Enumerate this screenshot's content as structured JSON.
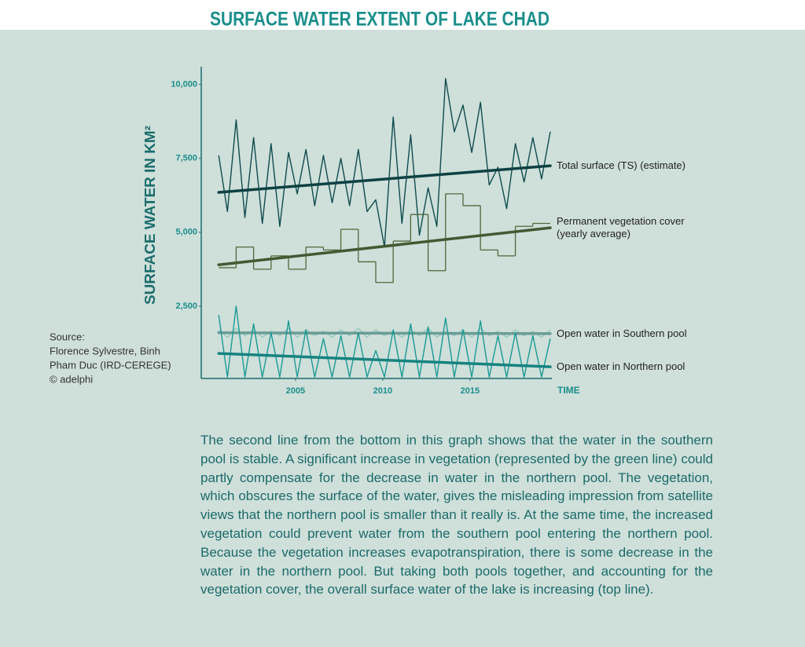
{
  "chart_data": {
    "type": "line",
    "title": "SURFACE WATER EXTENT OF LAKE CHAD",
    "y_label": "SURFACE WATER IN KM²",
    "x_label": "TIME",
    "source": [
      "Source:",
      "Florence Sylvestre, Binh",
      "Pham Duc (IRD-CEREGE)",
      "© adelphi"
    ],
    "xlim": [
      1999.6,
      2019.8
    ],
    "xticks": [
      2005,
      2010,
      2015
    ],
    "ylim": [
      0,
      10600
    ],
    "yticks": [
      {
        "value": 2500,
        "label": "2,500"
      },
      {
        "value": 5000,
        "label": "5,000"
      },
      {
        "value": 7500,
        "label": "7,500"
      },
      {
        "value": 10000,
        "label": "10,000"
      }
    ],
    "grid": false,
    "series": [
      {
        "name": "Total surface (TS) (estimate)",
        "color": "#0f4c4e",
        "x": [
          2000.6,
          2001.1,
          2001.6,
          2002.1,
          2002.6,
          2003.1,
          2003.6,
          2004.1,
          2004.6,
          2005.1,
          2005.6,
          2006.1,
          2006.6,
          2007.1,
          2007.6,
          2008.1,
          2008.6,
          2009.1,
          2009.6,
          2010.1,
          2010.6,
          2011.1,
          2011.6,
          2012.1,
          2012.6,
          2013.1,
          2013.6,
          2014.1,
          2014.6,
          2015.1,
          2015.6,
          2016.1,
          2016.6,
          2017.1,
          2017.6,
          2018.1,
          2018.6,
          2019.1,
          2019.6
        ],
        "values": [
          7600,
          5700,
          8800,
          5500,
          8200,
          5300,
          8000,
          5200,
          7700,
          6300,
          7800,
          5900,
          7600,
          6000,
          7500,
          5900,
          7800,
          5700,
          6100,
          4500,
          8900,
          5300,
          8300,
          4900,
          6500,
          5200,
          10200,
          8400,
          9300,
          7700,
          9400,
          6600,
          7200,
          5800,
          8000,
          6700,
          8200,
          6800,
          8400
        ],
        "trend": {
          "x": [
            2000.6,
            2019.6
          ],
          "values": [
            6350,
            7250
          ]
        }
      },
      {
        "name": "Permanent vegetation cover (yearly average)",
        "color": "#4d6a3b",
        "step": true,
        "bins": [
          2000.6,
          2001.6,
          2002.6,
          2003.6,
          2004.6,
          2005.6,
          2006.6,
          2007.6,
          2008.6,
          2009.6,
          2010.6,
          2011.6,
          2012.6,
          2013.6,
          2014.6,
          2015.6,
          2016.6,
          2017.6,
          2018.6,
          2019.6
        ],
        "values": [
          3800,
          4500,
          3750,
          4200,
          3750,
          4500,
          4400,
          5100,
          4000,
          3300,
          4700,
          5600,
          3700,
          6300,
          5900,
          4400,
          4200,
          5200,
          5300
        ],
        "trend": {
          "x": [
            2000.6,
            2019.6
          ],
          "values": [
            3900,
            5150
          ]
        }
      },
      {
        "name": "Open water in Southern pool",
        "color": "#93c8c0",
        "x": [
          2000.6,
          2001.1,
          2001.6,
          2002.1,
          2002.6,
          2003.1,
          2003.6,
          2004.1,
          2004.6,
          2005.1,
          2005.6,
          2006.1,
          2006.6,
          2007.1,
          2007.6,
          2008.1,
          2008.6,
          2009.1,
          2009.6,
          2010.1,
          2010.6,
          2011.1,
          2011.6,
          2012.1,
          2012.6,
          2013.1,
          2013.6,
          2014.1,
          2014.6,
          2015.1,
          2015.6,
          2016.1,
          2016.6,
          2017.1,
          2017.6,
          2018.1,
          2018.6,
          2019.1,
          2019.6
        ],
        "values": [
          1700,
          1450,
          1750,
          1500,
          1700,
          1450,
          1650,
          1500,
          1750,
          1450,
          1700,
          1500,
          1650,
          1450,
          1700,
          1500,
          1750,
          1450,
          1700,
          1500,
          1650,
          1450,
          1700,
          1500,
          1750,
          1450,
          1650,
          1500,
          1700,
          1450,
          1750,
          1500,
          1650,
          1450,
          1700,
          1500,
          1650,
          1450,
          1700
        ],
        "trend": {
          "x": [
            2000.6,
            2019.6
          ],
          "values": [
            1600,
            1570
          ]
        }
      },
      {
        "name": "Open water in Northern pool",
        "color": "#1a9a95",
        "x": [
          2000.6,
          2001.1,
          2001.6,
          2002.1,
          2002.6,
          2003.1,
          2003.6,
          2004.1,
          2004.6,
          2005.1,
          2005.6,
          2006.1,
          2006.6,
          2007.1,
          2007.6,
          2008.1,
          2008.6,
          2009.1,
          2009.6,
          2010.1,
          2010.6,
          2011.1,
          2011.6,
          2012.1,
          2012.6,
          2013.1,
          2013.6,
          2014.1,
          2014.6,
          2015.1,
          2015.6,
          2016.1,
          2016.6,
          2017.1,
          2017.6,
          2018.1,
          2018.6,
          2019.1,
          2019.6
        ],
        "values": [
          2200,
          100,
          2500,
          100,
          1900,
          100,
          1600,
          100,
          2000,
          100,
          1700,
          100,
          1400,
          100,
          1500,
          100,
          1600,
          100,
          1000,
          100,
          1700,
          100,
          1900,
          100,
          1800,
          100,
          2100,
          100,
          1700,
          100,
          2000,
          100,
          1500,
          100,
          1600,
          100,
          1500,
          100,
          1400
        ],
        "trend": {
          "x": [
            2000.6,
            2019.6
          ],
          "values": [
            900,
            450
          ]
        }
      }
    ],
    "caption": "The second line from the bottom in this graph shows that the water in the southern pool is stable. A significant increase in vegetation (represented by the green line) could partly compensate for the decrease in water in the northern pool. The vegetation, which obscures the surface of the water, gives the misleading impression from satellite views that the northern pool is smaller than it really is. At the same time, the increased vegetation could prevent water from the southern pool entering the northern pool. Because the vegetation increases evapotranspiration, there is some decrease in the water in the northern pool. But taking both pools together, and accounting for the vegetation cover, the overall surface water of the lake is increasing (top line)."
  }
}
